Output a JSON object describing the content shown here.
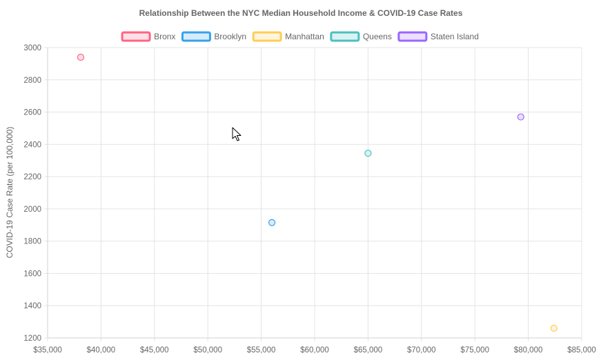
{
  "chart_data": {
    "type": "scatter",
    "title": "Relationship Between the NYC Median Household Income & COVID-19 Case Rates",
    "xlabel": "",
    "ylabel": "COVID-19 Case Rate (per 100,000)",
    "xlim": [
      35000,
      85000
    ],
    "ylim": [
      1200,
      3000
    ],
    "x_ticks": [
      "$35,000",
      "$40,000",
      "$45,000",
      "$50,000",
      "$55,000",
      "$60,000",
      "$65,000",
      "$70,000",
      "$75,000",
      "$80,000",
      "$85,000"
    ],
    "y_ticks": [
      "3000",
      "2800",
      "2600",
      "2400",
      "2200",
      "2000",
      "1800",
      "1600",
      "1400",
      "1200"
    ],
    "grid": true,
    "legend_position": "top",
    "series": [
      {
        "name": "Bronx",
        "x": 38100,
        "y": 2940,
        "border": "#ff6384",
        "fill": "#ffe0e6"
      },
      {
        "name": "Brooklyn",
        "x": 56000,
        "y": 1915,
        "border": "#36a2eb",
        "fill": "#d7ecfb"
      },
      {
        "name": "Manhattan",
        "x": 82400,
        "y": 1260,
        "border": "#ffcd56",
        "fill": "#fff5dd"
      },
      {
        "name": "Queens",
        "x": 65000,
        "y": 2345,
        "border": "#4bc0c0",
        "fill": "#dbf2f2"
      },
      {
        "name": "Staten Island",
        "x": 79300,
        "y": 2570,
        "border": "#9966ff",
        "fill": "#ebe0ff"
      }
    ]
  },
  "cursor": {
    "icon": "mouse-pointer-icon"
  }
}
